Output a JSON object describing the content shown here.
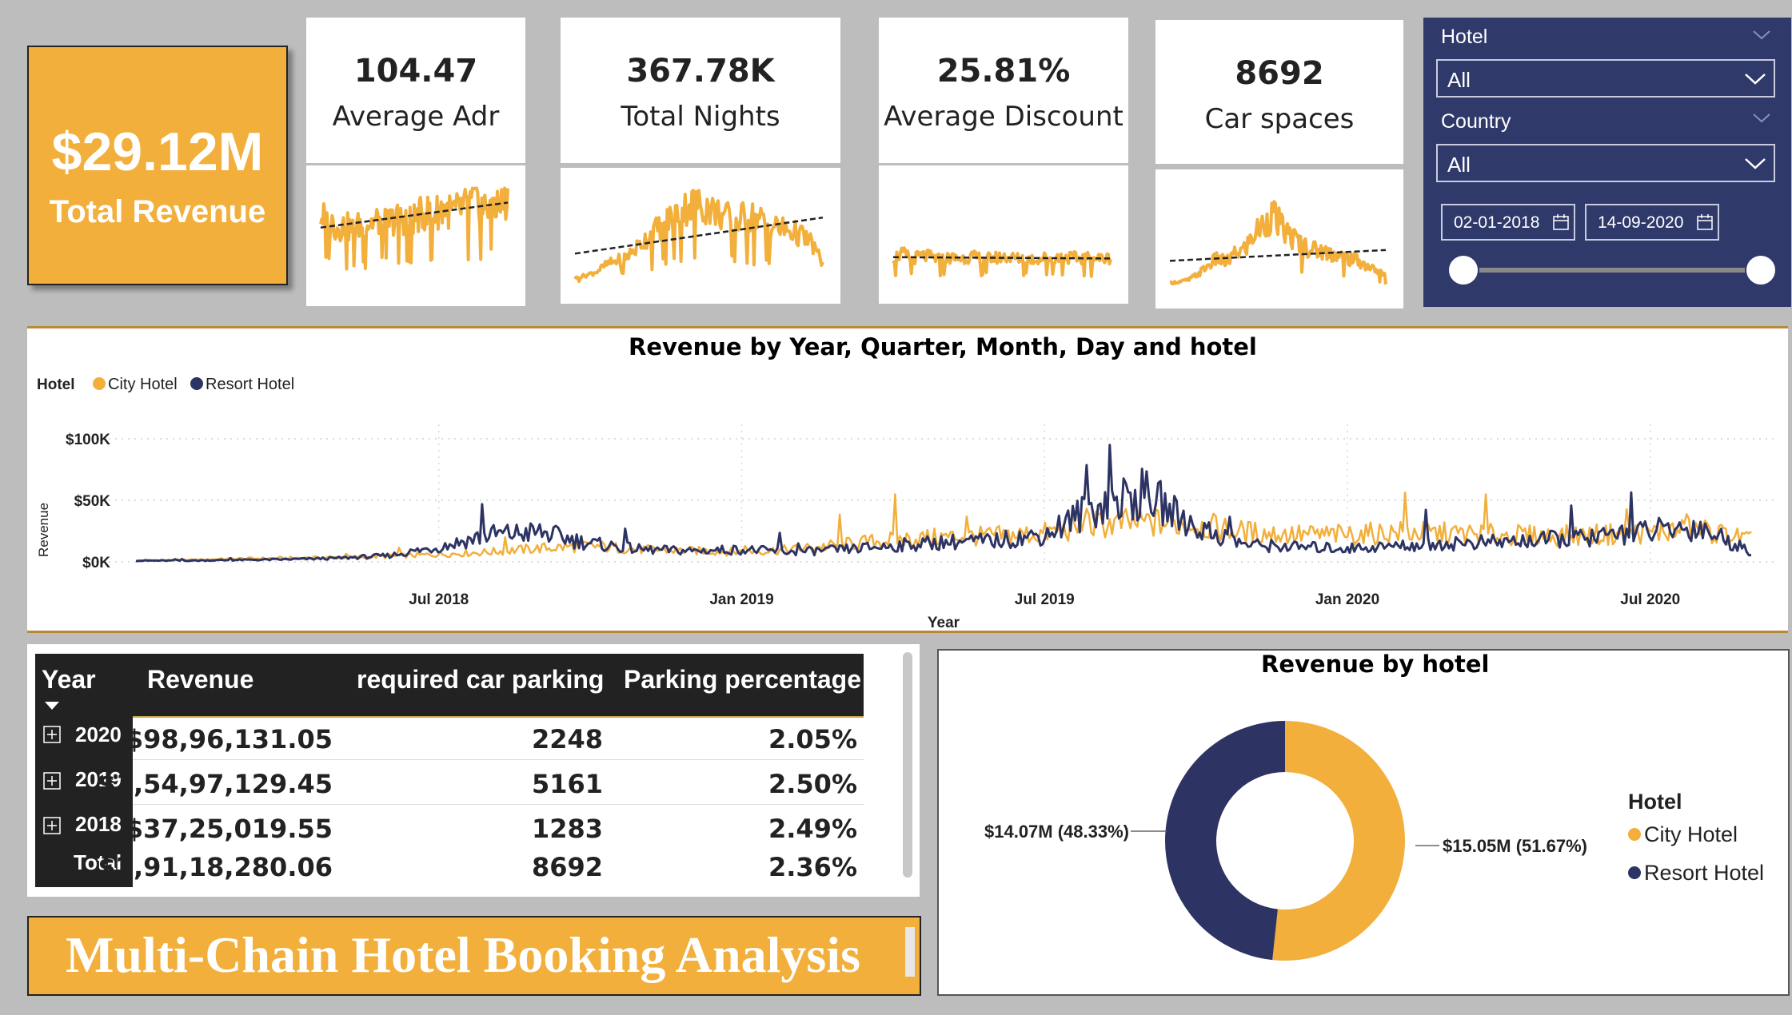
{
  "total_revenue": {
    "value": "$29.12M",
    "label": "Total Revenue"
  },
  "kpis": [
    {
      "value": "104.47",
      "label": "Average Adr"
    },
    {
      "value": "367.78K",
      "label": "Total Nights"
    },
    {
      "value": "25.81%",
      "label": "Average Discount"
    },
    {
      "value": "8692",
      "label": "Car spaces"
    }
  ],
  "slicer": {
    "hotel_title": "Hotel",
    "hotel_value": "All",
    "country_title": "Country",
    "country_value": "All",
    "date_start": "02-01-2018",
    "date_end": "14-09-2020",
    "range_start": 0,
    "range_end": 1
  },
  "colors": {
    "city": "#f2af3c",
    "resort": "#2d3464",
    "panel": "#2f3a6b",
    "trend": "#222222"
  },
  "line_chart": {
    "title": "Revenue by Year, Quarter, Month, Day and hotel",
    "legend_title": "Hotel",
    "ylabel": "Revenue",
    "xlabel": "Year",
    "yticks": [
      "$100K",
      "$50K",
      "$0K"
    ],
    "xticks": [
      "Jul 2018",
      "Jan 2019",
      "Jul 2019",
      "Jan 2020",
      "Jul 2020"
    ]
  },
  "table": {
    "headers": [
      "Year",
      "Revenue",
      "required car parking",
      "Parking percentage"
    ],
    "rows": [
      {
        "year": "2020",
        "revenue": "$98,96,131.05",
        "parking": "2248",
        "pct": "2.05%"
      },
      {
        "year": "2019",
        "revenue": "$1,54,97,129.45",
        "parking": "5161",
        "pct": "2.50%"
      },
      {
        "year": "2018",
        "revenue": "$37,25,019.55",
        "parking": "1283",
        "pct": "2.49%"
      }
    ],
    "total": {
      "label": "Total",
      "revenue": "$2,91,18,280.06",
      "parking": "8692",
      "pct": "2.36%"
    }
  },
  "banner": "Multi-Chain Hotel Booking Analysis",
  "donut": {
    "title": "Revenue by hotel",
    "legend_title": "Hotel",
    "city_label": "$15.05M (51.67%)",
    "resort_label": "$14.07M (48.33%)"
  },
  "chart_data": [
    {
      "type": "line",
      "title": "Revenue by Year, Quarter, Month, Day and hotel",
      "xlabel": "Year",
      "ylabel": "Revenue",
      "ylim": [
        0,
        100000
      ],
      "x": [
        "2018-01",
        "2018-02",
        "2018-03",
        "2018-04",
        "2018-05",
        "2018-06",
        "2018-07",
        "2018-08",
        "2018-09",
        "2018-10",
        "2018-11",
        "2018-12",
        "2019-01",
        "2019-02",
        "2019-03",
        "2019-04",
        "2019-05",
        "2019-06",
        "2019-07",
        "2019-08",
        "2019-09",
        "2019-10",
        "2019-11",
        "2019-12",
        "2020-01",
        "2020-02",
        "2020-03",
        "2020-04",
        "2020-05",
        "2020-06",
        "2020-07",
        "2020-08",
        "2020-09"
      ],
      "series": [
        {
          "name": "City Hotel",
          "values": [
            1000,
            1500,
            2500,
            3000,
            3500,
            4500,
            6000,
            8000,
            11000,
            13000,
            10000,
            9000,
            8000,
            10000,
            14000,
            18000,
            20000,
            21000,
            23000,
            30000,
            32000,
            30000,
            24000,
            22000,
            22000,
            24000,
            23000,
            22000,
            21000,
            22000,
            24000,
            26000,
            18000
          ]
        },
        {
          "name": "Resort Hotel",
          "values": [
            1000,
            1000,
            1500,
            2000,
            3000,
            5000,
            12000,
            22000,
            24000,
            15000,
            10000,
            9000,
            10000,
            8000,
            10000,
            13000,
            16000,
            17000,
            22000,
            45000,
            55000,
            28000,
            14000,
            12000,
            11000,
            13000,
            15000,
            16000,
            18000,
            20000,
            25000,
            28000,
            8000
          ]
        }
      ],
      "legend": "top-left",
      "grid": true
    },
    {
      "type": "pie",
      "title": "Revenue by hotel",
      "categories": [
        "City Hotel",
        "Resort Hotel"
      ],
      "values": [
        15.05,
        14.07
      ],
      "percent": [
        51.67,
        48.33
      ],
      "legend": "right"
    },
    {
      "type": "line",
      "title": "",
      "values": [
        70,
        66,
        58,
        60,
        56,
        62,
        63,
        65,
        64,
        66,
        68,
        65,
        70,
        74,
        72,
        78,
        74,
        76,
        80,
        86,
        78,
        84,
        80,
        86
      ],
      "trend": true
    },
    {
      "type": "line",
      "title": "",
      "values": [
        5,
        8,
        12,
        20,
        24,
        30,
        40,
        52,
        60,
        70,
        78,
        85,
        82,
        76,
        70,
        66,
        72,
        68,
        62,
        58,
        55,
        50,
        42,
        20
      ],
      "trend": true
    },
    {
      "type": "line",
      "title": "",
      "values": [
        26,
        30,
        25,
        28,
        27,
        24,
        26,
        25,
        27,
        26,
        25,
        26,
        27,
        25,
        26,
        24,
        26,
        25,
        27,
        26,
        25,
        26,
        25,
        26
      ],
      "trend": true
    },
    {
      "type": "line",
      "title": "",
      "values": [
        5,
        6,
        8,
        14,
        22,
        30,
        26,
        35,
        40,
        55,
        65,
        75,
        60,
        52,
        45,
        40,
        38,
        36,
        33,
        30,
        28,
        22,
        18,
        12
      ],
      "trend": true
    }
  ]
}
